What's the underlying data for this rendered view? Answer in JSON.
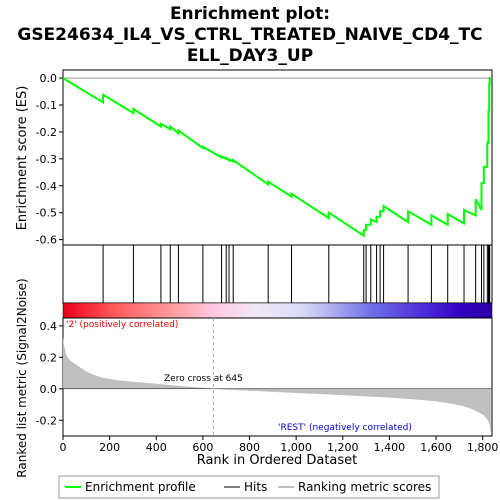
{
  "title_line1": "Enrichment plot:",
  "title_line2": "GSE24634_IL4_VS_CTRL_TREATED_NAIVE_CD4_TC",
  "title_line3": "ELL_DAY3_UP",
  "colors": {
    "es_line": "#00ff00",
    "hits": "#000000",
    "metric_fill": "#bfbfbf",
    "pos_label": "#ff0000",
    "neg_label": "#0000cc",
    "zero_cross_line": "#aaaaaa"
  },
  "chart_data": {
    "type": "line",
    "xlabel": "Rank in Ordered Dataset",
    "x_ticks": [
      0,
      200,
      400,
      600,
      800,
      1000,
      1200,
      1400,
      1600,
      1800
    ],
    "x_tick_labels": [
      "0",
      "200",
      "400",
      "600",
      "800",
      "1,000",
      "1,200",
      "1,400",
      "1,600",
      "1,800"
    ],
    "xlim": [
      0,
      1840
    ],
    "es_panel": {
      "ylabel": "Enrichment score (ES)",
      "ylim": [
        -0.62,
        0.03
      ],
      "y_ticks": [
        0.0,
        -0.1,
        -0.2,
        -0.3,
        -0.4,
        -0.5,
        -0.6
      ],
      "y_tick_labels": [
        "0.0",
        "-0.1",
        "-0.2",
        "-0.3",
        "-0.4",
        "-0.5",
        "-0.6"
      ]
    },
    "hits": [
      172,
      302,
      420,
      460,
      495,
      600,
      680,
      700,
      712,
      730,
      880,
      980,
      1140,
      1290,
      1300,
      1320,
      1345,
      1360,
      1375,
      1480,
      1580,
      1650,
      1720,
      1770,
      1795,
      1805,
      1820,
      1825,
      1828,
      1830
    ],
    "hit_es_before": [
      -0.09,
      -0.13,
      -0.18,
      -0.19,
      -0.205,
      -0.26,
      -0.295,
      -0.3,
      -0.305,
      -0.31,
      -0.395,
      -0.44,
      -0.52,
      -0.585,
      -0.565,
      -0.545,
      -0.535,
      -0.515,
      -0.495,
      -0.535,
      -0.545,
      -0.545,
      -0.54,
      -0.51,
      -0.49,
      -0.39,
      -0.33,
      -0.24,
      -0.12,
      -0.02
    ],
    "hit_es_after": [
      -0.062,
      -0.115,
      -0.17,
      -0.18,
      -0.195,
      -0.255,
      -0.29,
      -0.297,
      -0.302,
      -0.305,
      -0.385,
      -0.43,
      -0.5,
      -0.565,
      -0.545,
      -0.525,
      -0.515,
      -0.495,
      -0.475,
      -0.495,
      -0.51,
      -0.505,
      -0.49,
      -0.45,
      -0.39,
      -0.33,
      -0.24,
      -0.12,
      -0.02,
      0.0
    ],
    "metric_panel": {
      "ylabel": "Ranked list metric (Signal2Noise)",
      "ylim": [
        -0.3,
        0.45
      ],
      "y_ticks": [
        0.4,
        0.2,
        0.0,
        -0.2
      ],
      "y_tick_labels": [
        "0.4",
        "0.2",
        "0.0",
        "-0.2"
      ],
      "rank": [
        0,
        5,
        15,
        30,
        60,
        100,
        130,
        170,
        230,
        300,
        380,
        450,
        520,
        600,
        645,
        700,
        800,
        900,
        1000,
        1100,
        1200,
        1300,
        1400,
        1500,
        1600,
        1650,
        1700,
        1740,
        1770,
        1790,
        1810,
        1822,
        1830,
        1835
      ],
      "metric": [
        0.33,
        0.27,
        0.21,
        0.18,
        0.15,
        0.11,
        0.09,
        0.07,
        0.055,
        0.045,
        0.035,
        0.025,
        0.015,
        0.007,
        0.0,
        -0.005,
        -0.012,
        -0.02,
        -0.027,
        -0.033,
        -0.04,
        -0.048,
        -0.056,
        -0.066,
        -0.08,
        -0.09,
        -0.105,
        -0.12,
        -0.14,
        -0.155,
        -0.175,
        -0.2,
        -0.235,
        -0.28
      ]
    },
    "annotations": {
      "pos_label": "'2' (positively correlated)",
      "neg_label": "'REST' (negatively correlated)",
      "zero_cross": "Zero cross at 645",
      "zero_cross_rank": 645
    },
    "legend": {
      "placement": "bottom",
      "items": [
        "Enrichment profile",
        "Hits",
        "Ranking metric scores"
      ]
    }
  }
}
